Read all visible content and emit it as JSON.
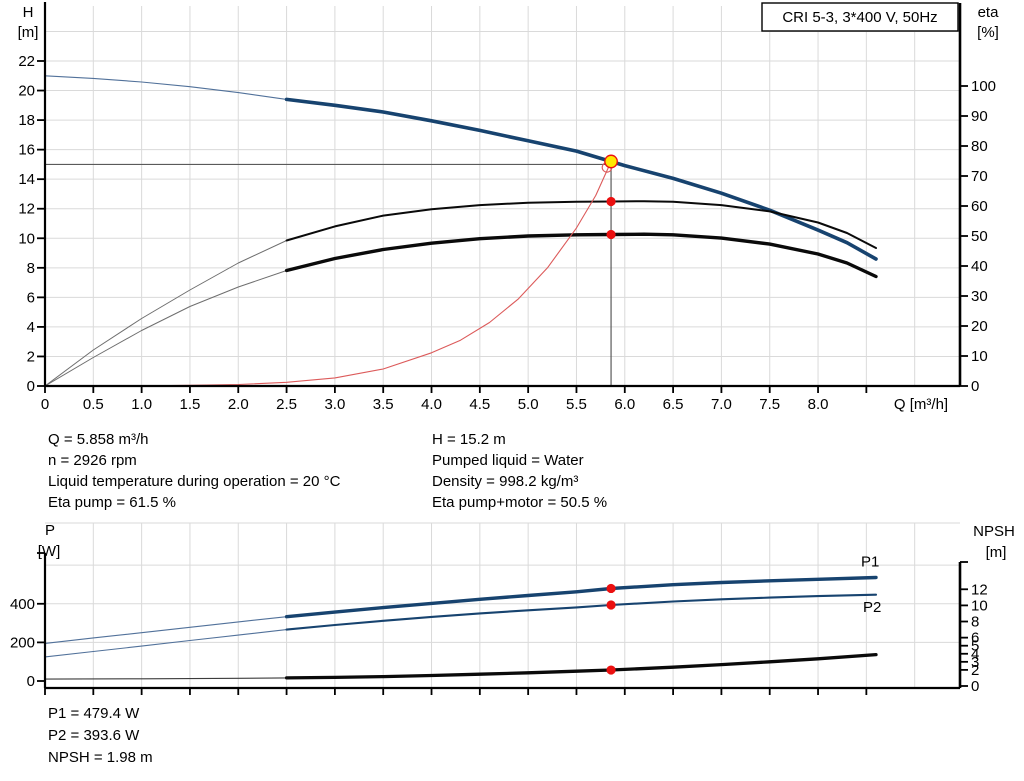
{
  "title_box": "CRI 5-3, 3*400 V, 50Hz",
  "colors": {
    "curve_blue": "#17436F",
    "curve_thin_blue": "#51719A",
    "curve_black": "#0A0A0A",
    "curve_thin_grey": "#6E6E6E",
    "curve_red": "#DC5A5A",
    "marker_red": "#EB1010",
    "marker_yellow": "#FFE800",
    "grid": "#DADADA",
    "axis": "#000000",
    "crosshair": "#5A5A5A",
    "label_blue": "#17436F"
  },
  "operating_point": {
    "left": [
      "Q = 5.858 m³/h",
      "n = 2926 rpm",
      "Liquid temperature during operation = 20 °C",
      "Eta pump = 61.5 %"
    ],
    "right": [
      "H = 15.2 m",
      "Pumped liquid = Water",
      "Density = 998.2 kg/m³",
      "Eta pump+motor = 50.5 %"
    ]
  },
  "results": [
    "P1 = 479.4 W",
    "P2 = 393.6 W",
    "NPSH = 1.98 m"
  ],
  "chart_data": [
    {
      "type": "line",
      "name": "head-efficiency-chart",
      "title": "CRI 5-3, 3*400 V, 50Hz",
      "x_axis": {
        "label": "Q [m³/h]",
        "min": 0,
        "max": 9.47,
        "ticks": [
          [
            0,
            "0"
          ],
          [
            0.5,
            "0.5"
          ],
          [
            1,
            "1.0"
          ],
          [
            1.5,
            "1.5"
          ],
          [
            2,
            "2.0"
          ],
          [
            2.5,
            "2.5"
          ],
          [
            3,
            "3.0"
          ],
          [
            3.5,
            "3.5"
          ],
          [
            4,
            "4.0"
          ],
          [
            4.5,
            "4.5"
          ],
          [
            5,
            "5.0"
          ],
          [
            5.5,
            "5.5"
          ],
          [
            6,
            "6.0"
          ],
          [
            6.5,
            "6.5"
          ],
          [
            7,
            "7.0"
          ],
          [
            7.5,
            "7.5"
          ],
          [
            8,
            "8.0"
          ],
          [
            8.5,
            ""
          ]
        ],
        "gridlines": [
          0.5,
          1,
          1.5,
          2,
          2.5,
          3,
          3.5,
          4,
          4.5,
          5,
          5.5,
          6,
          6.5,
          7,
          7.5,
          8,
          8.5,
          9
        ]
      },
      "left_axis": {
        "title": "H",
        "unit": "[m]",
        "min": 0,
        "max": 25.6,
        "ticks": [
          [
            0,
            "0"
          ],
          [
            2,
            "2"
          ],
          [
            4,
            "4"
          ],
          [
            6,
            "6"
          ],
          [
            8,
            "8"
          ],
          [
            10,
            "10"
          ],
          [
            12,
            "12"
          ],
          [
            14,
            "14"
          ],
          [
            16,
            "16"
          ],
          [
            18,
            "18"
          ],
          [
            20,
            "20"
          ],
          [
            22,
            "22"
          ]
        ],
        "gridline_values": [
          2,
          4,
          6,
          8,
          10,
          12,
          14,
          16,
          18,
          20,
          22,
          24
        ]
      },
      "right_axis": {
        "title": "eta",
        "unit": "[%]",
        "min": 0,
        "max": 126,
        "ticks": [
          [
            0,
            "0"
          ],
          [
            10,
            "10"
          ],
          [
            20,
            "20"
          ],
          [
            30,
            "30"
          ],
          [
            40,
            "40"
          ],
          [
            50,
            "50"
          ],
          [
            60,
            "60"
          ],
          [
            70,
            "70"
          ],
          [
            80,
            "80"
          ],
          [
            90,
            "90"
          ],
          [
            100,
            "100"
          ]
        ]
      },
      "series": [
        {
          "name": "hq-curve-extrapolated",
          "axis": "H",
          "style": "hq_thin",
          "points": [
            [
              0,
              21.0
            ],
            [
              0.5,
              20.82
            ],
            [
              1,
              20.58
            ],
            [
              1.5,
              20.26
            ],
            [
              2,
              19.86
            ],
            [
              2.5,
              19.4
            ]
          ]
        },
        {
          "name": "hq-curve",
          "axis": "H",
          "style": "hq_thick",
          "points": [
            [
              2.5,
              19.4
            ],
            [
              3,
              19.0
            ],
            [
              3.5,
              18.55
            ],
            [
              4,
              17.95
            ],
            [
              4.5,
              17.3
            ],
            [
              5,
              16.6
            ],
            [
              5.5,
              15.9
            ],
            [
              5.858,
              15.2
            ],
            [
              6,
              14.92
            ],
            [
              6.5,
              14.05
            ],
            [
              7,
              13.05
            ],
            [
              7.5,
              11.9
            ],
            [
              8,
              10.55
            ],
            [
              8.3,
              9.7
            ],
            [
              8.6,
              8.6
            ]
          ]
        },
        {
          "name": "eta-pump-low-flow",
          "axis": "eta",
          "style": "eta_thin",
          "points": [
            [
              0,
              0
            ],
            [
              0.5,
              12
            ],
            [
              1,
              22.5
            ],
            [
              1.5,
              32
            ],
            [
              2,
              41
            ],
            [
              2.5,
              48.5
            ]
          ]
        },
        {
          "name": "eta-pump",
          "axis": "eta",
          "style": "eta_main",
          "points": [
            [
              2.5,
              48.5
            ],
            [
              3,
              53.2
            ],
            [
              3.5,
              56.8
            ],
            [
              4,
              58.9
            ],
            [
              4.5,
              60.3
            ],
            [
              5,
              61.1
            ],
            [
              5.5,
              61.4
            ],
            [
              5.858,
              61.5
            ],
            [
              6.2,
              61.6
            ],
            [
              6.5,
              61.4
            ],
            [
              7,
              60.3
            ],
            [
              7.5,
              58.2
            ],
            [
              8,
              54.5
            ],
            [
              8.3,
              51
            ],
            [
              8.6,
              46
            ]
          ]
        },
        {
          "name": "eta-pump-motor-low-flow",
          "axis": "eta",
          "style": "eta_thin",
          "points": [
            [
              0,
              0
            ],
            [
              0.5,
              9.5
            ],
            [
              1,
              18.5
            ],
            [
              1.5,
              26.5
            ],
            [
              2,
              33
            ],
            [
              2.5,
              38.5
            ]
          ]
        },
        {
          "name": "eta-pump-motor",
          "axis": "eta",
          "style": "eta_thick",
          "points": [
            [
              2.5,
              38.5
            ],
            [
              3,
              42.5
            ],
            [
              3.5,
              45.5
            ],
            [
              4,
              47.6
            ],
            [
              4.5,
              49.1
            ],
            [
              5,
              50.0
            ],
            [
              5.5,
              50.4
            ],
            [
              5.858,
              50.5
            ],
            [
              6.2,
              50.6
            ],
            [
              6.5,
              50.4
            ],
            [
              7,
              49.3
            ],
            [
              7.5,
              47.3
            ],
            [
              8,
              44
            ],
            [
              8.3,
              41
            ],
            [
              8.6,
              36.5
            ]
          ]
        },
        {
          "name": "system-curve",
          "axis": "H",
          "style": "sys_red",
          "points": [
            [
              0,
              0
            ],
            [
              1,
              0.01
            ],
            [
              1.5,
              0.05
            ],
            [
              2,
              0.1
            ],
            [
              2.5,
              0.25
            ],
            [
              3,
              0.55
            ],
            [
              3.5,
              1.15
            ],
            [
              4,
              2.25
            ],
            [
              4.3,
              3.1
            ],
            [
              4.6,
              4.3
            ],
            [
              4.9,
              5.9
            ],
            [
              5.2,
              8.0
            ],
            [
              5.5,
              10.7
            ],
            [
              5.7,
              12.9
            ],
            [
              5.858,
              15.2
            ]
          ]
        }
      ],
      "crosshair": {
        "axis": "H",
        "q": 5.858,
        "v": 15.2
      },
      "markers": [
        {
          "style": "ring_red",
          "axis": "H",
          "q": 5.816,
          "v": 14.8
        },
        {
          "style": "dot_red",
          "axis": "eta",
          "q": 5.858,
          "v": 61.5
        },
        {
          "style": "dot_red",
          "axis": "eta",
          "q": 5.858,
          "v": 50.5
        },
        {
          "style": "duty_yellow",
          "axis": "H",
          "q": 5.858,
          "v": 15.2
        }
      ]
    },
    {
      "type": "line",
      "name": "power-npsh-chart",
      "x_axis": {
        "label": "",
        "min": 0,
        "max": 9.47,
        "ticks": [
          [
            0,
            ""
          ],
          [
            0.5,
            ""
          ],
          [
            1,
            ""
          ],
          [
            1.5,
            ""
          ],
          [
            2,
            ""
          ],
          [
            2.5,
            ""
          ],
          [
            3,
            ""
          ],
          [
            3.5,
            ""
          ],
          [
            4,
            ""
          ],
          [
            4.5,
            ""
          ],
          [
            5,
            ""
          ],
          [
            5.5,
            ""
          ],
          [
            6,
            ""
          ],
          [
            6.5,
            ""
          ],
          [
            7,
            ""
          ],
          [
            7.5,
            ""
          ],
          [
            8,
            ""
          ],
          [
            8.5,
            ""
          ]
        ],
        "gridlines": [
          0.5,
          1,
          1.5,
          2,
          2.5,
          3,
          3.5,
          4,
          4.5,
          5,
          5.5,
          6,
          6.5,
          7,
          7.5,
          8,
          8.5,
          9
        ]
      },
      "left_axis": {
        "title": "P",
        "unit": "[W]",
        "min": 0,
        "max": 820,
        "ticks": [
          [
            0,
            "0"
          ],
          [
            200,
            "200"
          ],
          [
            400,
            "400"
          ]
        ],
        "gridline_values": [
          200,
          400,
          600
        ]
      },
      "right_axis": {
        "title": "NPSH",
        "unit": "[m]",
        "min": 0,
        "max": 15.5,
        "ticks": [
          [
            0,
            "0"
          ],
          [
            2,
            "2"
          ],
          [
            3,
            "3"
          ],
          [
            4,
            "4"
          ],
          [
            5,
            "5"
          ],
          [
            6,
            "6"
          ],
          [
            8,
            "8"
          ],
          [
            10,
            "10"
          ],
          [
            12,
            "12"
          ]
        ]
      },
      "series": [
        {
          "name": "p1-curve-low-flow",
          "axis": "P",
          "style": "p_thin",
          "points": [
            [
              0,
              195
            ],
            [
              0.5,
              223
            ],
            [
              1,
              250
            ],
            [
              1.5,
              278
            ],
            [
              2,
              306
            ],
            [
              2.5,
              333
            ]
          ]
        },
        {
          "name": "p1-curve",
          "axis": "P",
          "style": "p1_thick",
          "points": [
            [
              2.5,
              333
            ],
            [
              3,
              357
            ],
            [
              3.5,
              380
            ],
            [
              4,
              402
            ],
            [
              4.5,
              423
            ],
            [
              5,
              443
            ],
            [
              5.5,
              462
            ],
            [
              5.858,
              479.4
            ],
            [
              6.5,
              499
            ],
            [
              7,
              510
            ],
            [
              7.5,
              519
            ],
            [
              8,
              527
            ],
            [
              8.6,
              536
            ]
          ]
        },
        {
          "name": "p2-curve-low-flow",
          "axis": "P",
          "style": "p_thin",
          "points": [
            [
              0,
              125
            ],
            [
              0.5,
              153
            ],
            [
              1,
              181
            ],
            [
              1.5,
              210
            ],
            [
              2,
              238
            ],
            [
              2.5,
              266
            ]
          ]
        },
        {
          "name": "p2-curve",
          "axis": "P",
          "style": "p2_thick",
          "points": [
            [
              2.5,
              266
            ],
            [
              3,
              290
            ],
            [
              3.5,
              312
            ],
            [
              4,
              332
            ],
            [
              4.5,
              350
            ],
            [
              5,
              366
            ],
            [
              5.5,
              381
            ],
            [
              5.858,
              393.6
            ],
            [
              6.5,
              412
            ],
            [
              7,
              423
            ],
            [
              7.5,
              432
            ],
            [
              8,
              440
            ],
            [
              8.6,
              447
            ]
          ]
        },
        {
          "name": "npsh-curve-low-flow",
          "axis": "NPSH",
          "style": "npsh_thin",
          "points": [
            [
              0,
              0.85
            ],
            [
              1,
              0.89
            ],
            [
              2,
              0.95
            ],
            [
              2.5,
              1.0
            ]
          ]
        },
        {
          "name": "npsh-curve",
          "axis": "NPSH",
          "style": "npsh_thick",
          "points": [
            [
              2.5,
              1.0
            ],
            [
              3,
              1.07
            ],
            [
              3.5,
              1.17
            ],
            [
              4,
              1.3
            ],
            [
              4.5,
              1.46
            ],
            [
              5,
              1.64
            ],
            [
              5.5,
              1.84
            ],
            [
              5.858,
              1.98
            ],
            [
              6.5,
              2.33
            ],
            [
              7,
              2.65
            ],
            [
              7.5,
              3.0
            ],
            [
              8,
              3.38
            ],
            [
              8.6,
              3.9
            ]
          ]
        }
      ],
      "series_labels": [
        {
          "text": "P1",
          "axis": "P",
          "q": 8.54,
          "v": 592
        },
        {
          "text": "P2",
          "axis": "P",
          "q": 8.56,
          "v": 357
        }
      ],
      "markers": [
        {
          "style": "dot_red",
          "axis": "P",
          "q": 5.858,
          "v": 479.4
        },
        {
          "style": "dot_red",
          "axis": "P",
          "q": 5.858,
          "v": 393.6
        },
        {
          "style": "dot_red",
          "axis": "NPSH",
          "q": 5.858,
          "v": 1.98
        }
      ]
    }
  ]
}
